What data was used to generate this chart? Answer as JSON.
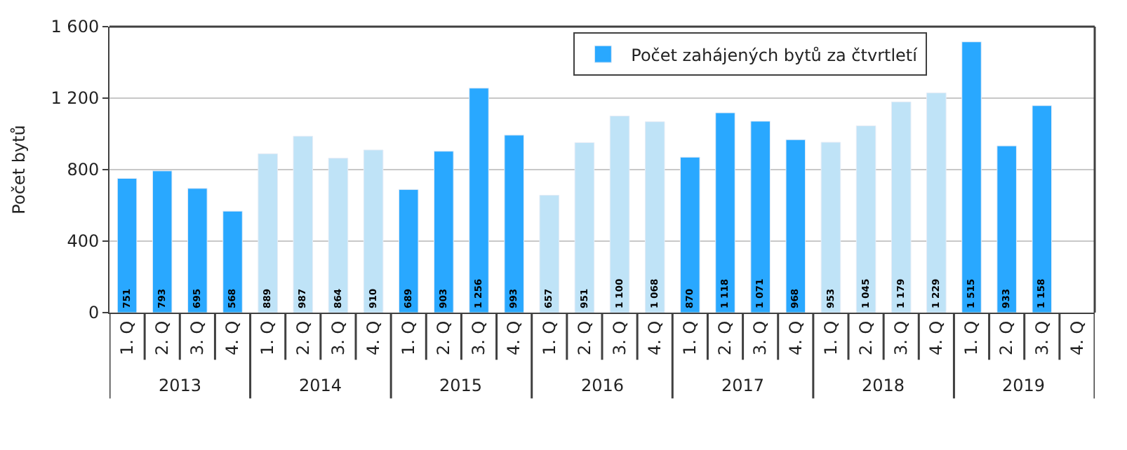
{
  "chart_data": {
    "type": "bar",
    "categories": [
      "1. Q",
      "2. Q",
      "3. Q",
      "4. Q",
      "1. Q",
      "2. Q",
      "3. Q",
      "4. Q",
      "1. Q",
      "2. Q",
      "3. Q",
      "4. Q",
      "1. Q",
      "2. Q",
      "3. Q",
      "4. Q",
      "1. Q",
      "2. Q",
      "3. Q",
      "4. Q",
      "1. Q",
      "2. Q",
      "3. Q",
      "4. Q",
      "1. Q",
      "2. Q",
      "3. Q",
      "4. Q"
    ],
    "series": [
      {
        "name": "Počet zahájených bytů za čtvrtletí",
        "colors": [
          "#29a8ff",
          "#29a8ff",
          "#29a8ff",
          "#29a8ff",
          "#bfe3f7",
          "#bfe3f7",
          "#bfe3f7",
          "#bfe3f7",
          "#29a8ff",
          "#29a8ff",
          "#29a8ff",
          "#29a8ff",
          "#bfe3f7",
          "#bfe3f7",
          "#bfe3f7",
          "#bfe3f7",
          "#29a8ff",
          "#29a8ff",
          "#29a8ff",
          "#29a8ff",
          "#bfe3f7",
          "#bfe3f7",
          "#bfe3f7",
          "#bfe3f7",
          "#29a8ff",
          "#29a8ff",
          "#29a8ff",
          "#29a8ff"
        ],
        "values": [
          751,
          793,
          695,
          568,
          889,
          987,
          864,
          910,
          689,
          903,
          1256,
          993,
          657,
          951,
          1100,
          1068,
          870,
          1118,
          1071,
          968,
          953,
          1045,
          1179,
          1229,
          1515,
          933,
          1158,
          null
        ],
        "value_labels": [
          "751",
          "793",
          "695",
          "568",
          "889",
          "987",
          "864",
          "910",
          "689",
          "903",
          "1 256",
          "993",
          "657",
          "951",
          "1 100",
          "1 068",
          "870",
          "1 118",
          "1 071",
          "968",
          "953",
          "1 045",
          "1 179",
          "1 229",
          "1 515",
          "933",
          "1 158",
          null
        ]
      }
    ],
    "ylabel": "Počet bytů",
    "ylim": [
      0,
      1600
    ],
    "yticks": [
      0,
      400,
      800,
      {
        "value": 1200,
        "label": "1 200"
      },
      {
        "value": 1600,
        "label": "1 600"
      }
    ],
    "annotations": [
      "2013",
      "2014",
      "2015",
      "2016",
      "2017",
      "2018",
      "2019"
    ],
    "grid": "y",
    "legend": "top right"
  }
}
